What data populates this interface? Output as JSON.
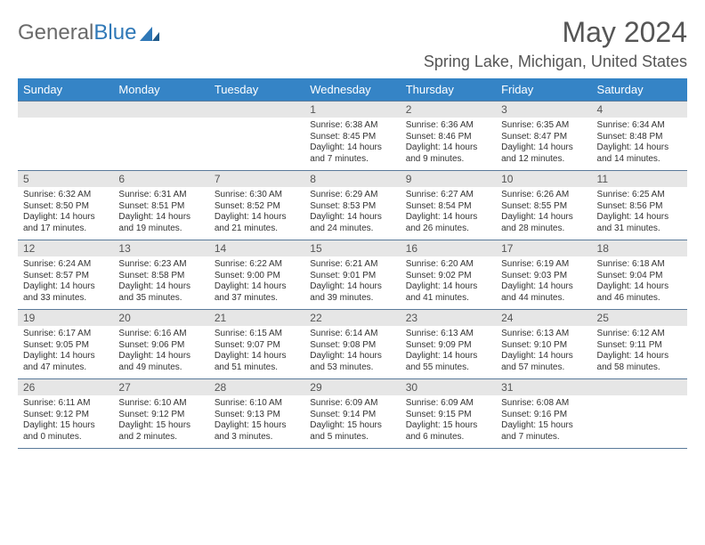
{
  "brand": {
    "part1": "General",
    "part2": "Blue"
  },
  "title": "May 2024",
  "location": "Spring Lake, Michigan, United States",
  "colors": {
    "header_bg": "#3584c6",
    "header_text": "#ffffff",
    "daynum_bg": "#e6e6e6",
    "cell_border": "#5a7a9a",
    "body_text": "#333333",
    "title_text": "#555555",
    "logo_gray": "#6a6a6a",
    "logo_blue": "#2f78b7"
  },
  "weekdays": [
    "Sunday",
    "Monday",
    "Tuesday",
    "Wednesday",
    "Thursday",
    "Friday",
    "Saturday"
  ],
  "weeks": [
    [
      null,
      null,
      null,
      {
        "n": "1",
        "sun": "Sunrise: 6:38 AM",
        "set": "Sunset: 8:45 PM",
        "dl": "Daylight: 14 hours and 7 minutes."
      },
      {
        "n": "2",
        "sun": "Sunrise: 6:36 AM",
        "set": "Sunset: 8:46 PM",
        "dl": "Daylight: 14 hours and 9 minutes."
      },
      {
        "n": "3",
        "sun": "Sunrise: 6:35 AM",
        "set": "Sunset: 8:47 PM",
        "dl": "Daylight: 14 hours and 12 minutes."
      },
      {
        "n": "4",
        "sun": "Sunrise: 6:34 AM",
        "set": "Sunset: 8:48 PM",
        "dl": "Daylight: 14 hours and 14 minutes."
      }
    ],
    [
      {
        "n": "5",
        "sun": "Sunrise: 6:32 AM",
        "set": "Sunset: 8:50 PM",
        "dl": "Daylight: 14 hours and 17 minutes."
      },
      {
        "n": "6",
        "sun": "Sunrise: 6:31 AM",
        "set": "Sunset: 8:51 PM",
        "dl": "Daylight: 14 hours and 19 minutes."
      },
      {
        "n": "7",
        "sun": "Sunrise: 6:30 AM",
        "set": "Sunset: 8:52 PM",
        "dl": "Daylight: 14 hours and 21 minutes."
      },
      {
        "n": "8",
        "sun": "Sunrise: 6:29 AM",
        "set": "Sunset: 8:53 PM",
        "dl": "Daylight: 14 hours and 24 minutes."
      },
      {
        "n": "9",
        "sun": "Sunrise: 6:27 AM",
        "set": "Sunset: 8:54 PM",
        "dl": "Daylight: 14 hours and 26 minutes."
      },
      {
        "n": "10",
        "sun": "Sunrise: 6:26 AM",
        "set": "Sunset: 8:55 PM",
        "dl": "Daylight: 14 hours and 28 minutes."
      },
      {
        "n": "11",
        "sun": "Sunrise: 6:25 AM",
        "set": "Sunset: 8:56 PM",
        "dl": "Daylight: 14 hours and 31 minutes."
      }
    ],
    [
      {
        "n": "12",
        "sun": "Sunrise: 6:24 AM",
        "set": "Sunset: 8:57 PM",
        "dl": "Daylight: 14 hours and 33 minutes."
      },
      {
        "n": "13",
        "sun": "Sunrise: 6:23 AM",
        "set": "Sunset: 8:58 PM",
        "dl": "Daylight: 14 hours and 35 minutes."
      },
      {
        "n": "14",
        "sun": "Sunrise: 6:22 AM",
        "set": "Sunset: 9:00 PM",
        "dl": "Daylight: 14 hours and 37 minutes."
      },
      {
        "n": "15",
        "sun": "Sunrise: 6:21 AM",
        "set": "Sunset: 9:01 PM",
        "dl": "Daylight: 14 hours and 39 minutes."
      },
      {
        "n": "16",
        "sun": "Sunrise: 6:20 AM",
        "set": "Sunset: 9:02 PM",
        "dl": "Daylight: 14 hours and 41 minutes."
      },
      {
        "n": "17",
        "sun": "Sunrise: 6:19 AM",
        "set": "Sunset: 9:03 PM",
        "dl": "Daylight: 14 hours and 44 minutes."
      },
      {
        "n": "18",
        "sun": "Sunrise: 6:18 AM",
        "set": "Sunset: 9:04 PM",
        "dl": "Daylight: 14 hours and 46 minutes."
      }
    ],
    [
      {
        "n": "19",
        "sun": "Sunrise: 6:17 AM",
        "set": "Sunset: 9:05 PM",
        "dl": "Daylight: 14 hours and 47 minutes."
      },
      {
        "n": "20",
        "sun": "Sunrise: 6:16 AM",
        "set": "Sunset: 9:06 PM",
        "dl": "Daylight: 14 hours and 49 minutes."
      },
      {
        "n": "21",
        "sun": "Sunrise: 6:15 AM",
        "set": "Sunset: 9:07 PM",
        "dl": "Daylight: 14 hours and 51 minutes."
      },
      {
        "n": "22",
        "sun": "Sunrise: 6:14 AM",
        "set": "Sunset: 9:08 PM",
        "dl": "Daylight: 14 hours and 53 minutes."
      },
      {
        "n": "23",
        "sun": "Sunrise: 6:13 AM",
        "set": "Sunset: 9:09 PM",
        "dl": "Daylight: 14 hours and 55 minutes."
      },
      {
        "n": "24",
        "sun": "Sunrise: 6:13 AM",
        "set": "Sunset: 9:10 PM",
        "dl": "Daylight: 14 hours and 57 minutes."
      },
      {
        "n": "25",
        "sun": "Sunrise: 6:12 AM",
        "set": "Sunset: 9:11 PM",
        "dl": "Daylight: 14 hours and 58 minutes."
      }
    ],
    [
      {
        "n": "26",
        "sun": "Sunrise: 6:11 AM",
        "set": "Sunset: 9:12 PM",
        "dl": "Daylight: 15 hours and 0 minutes."
      },
      {
        "n": "27",
        "sun": "Sunrise: 6:10 AM",
        "set": "Sunset: 9:12 PM",
        "dl": "Daylight: 15 hours and 2 minutes."
      },
      {
        "n": "28",
        "sun": "Sunrise: 6:10 AM",
        "set": "Sunset: 9:13 PM",
        "dl": "Daylight: 15 hours and 3 minutes."
      },
      {
        "n": "29",
        "sun": "Sunrise: 6:09 AM",
        "set": "Sunset: 9:14 PM",
        "dl": "Daylight: 15 hours and 5 minutes."
      },
      {
        "n": "30",
        "sun": "Sunrise: 6:09 AM",
        "set": "Sunset: 9:15 PM",
        "dl": "Daylight: 15 hours and 6 minutes."
      },
      {
        "n": "31",
        "sun": "Sunrise: 6:08 AM",
        "set": "Sunset: 9:16 PM",
        "dl": "Daylight: 15 hours and 7 minutes."
      },
      null
    ]
  ]
}
